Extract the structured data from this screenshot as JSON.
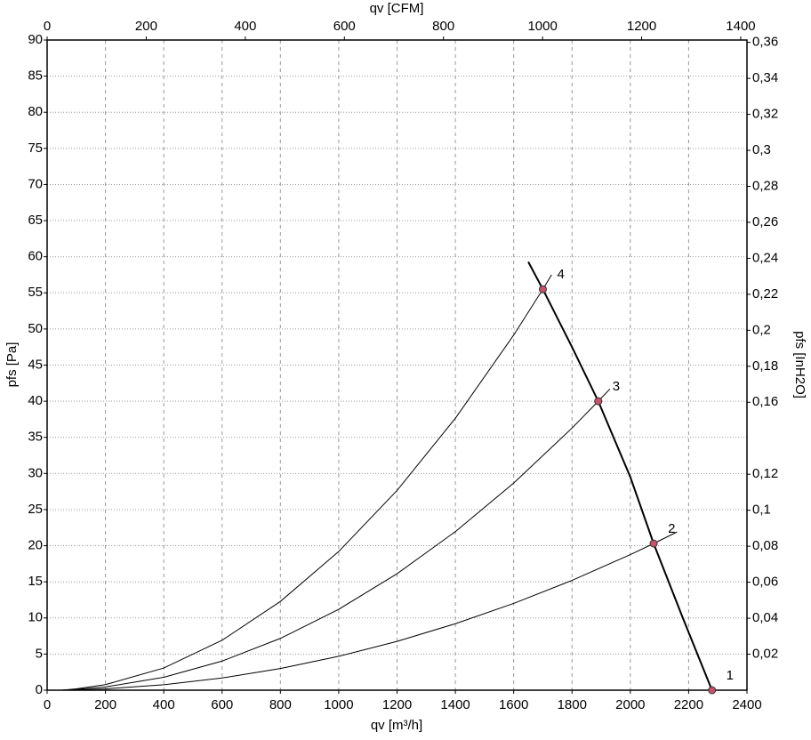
{
  "chart_data": {
    "type": "line",
    "x_label": "qv [m³/h]",
    "x2_label": "qv [CFM]",
    "y_label": "pfs [Pa]",
    "y2_label": "pfs [InH2O]",
    "xlim": [
      0,
      2400
    ],
    "xticks": [
      0,
      200,
      400,
      600,
      800,
      1000,
      1200,
      1400,
      1600,
      1800,
      2000,
      2200,
      2400
    ],
    "x2lim": [
      0,
      1412.6
    ],
    "x2ticks": [
      0,
      200,
      400,
      600,
      800,
      1000,
      1200,
      1400
    ],
    "ylim": [
      0,
      90
    ],
    "yticks": [
      0,
      5,
      10,
      15,
      20,
      25,
      30,
      35,
      40,
      45,
      50,
      55,
      60,
      65,
      70,
      75,
      80,
      85,
      90
    ],
    "y2lim": [
      0,
      0.3613
    ],
    "y2ticks": [
      {
        "value": 0.02,
        "label": "0,02"
      },
      {
        "value": 0.04,
        "label": "0,04"
      },
      {
        "value": 0.06,
        "label": "0,06"
      },
      {
        "value": 0.08,
        "label": "0,08"
      },
      {
        "value": 0.1,
        "label": "0,1"
      },
      {
        "value": 0.12,
        "label": "0,12"
      },
      {
        "value": 0.16,
        "label": "0,16"
      },
      {
        "value": 0.18,
        "label": "0,18"
      },
      {
        "value": 0.2,
        "label": "0,2"
      },
      {
        "value": 0.22,
        "label": "0,22"
      },
      {
        "value": 0.24,
        "label": "0,24"
      },
      {
        "value": 0.26,
        "label": "0,26"
      },
      {
        "value": 0.28,
        "label": "0,28"
      },
      {
        "value": 0.3,
        "label": "0,3"
      },
      {
        "value": 0.32,
        "label": "0,32"
      },
      {
        "value": 0.34,
        "label": "0,34"
      },
      {
        "value": 0.36,
        "label": "0,36"
      }
    ],
    "grid": true,
    "series": [
      {
        "color": "#000000",
        "width": 2,
        "x": [
          1650,
          1700,
          1800,
          1890,
          2000,
          2080,
          2180,
          2280
        ],
        "values": [
          59.3,
          55.5,
          47.5,
          40,
          29.5,
          20.3,
          10,
          0
        ]
      },
      {
        "color": "#000000",
        "width": 1,
        "x": [
          50,
          100,
          200,
          400,
          600,
          800,
          1000,
          1200,
          1400,
          1600,
          1700,
          1730
        ],
        "values": [
          0,
          0.19,
          0.77,
          3.07,
          6.91,
          12.29,
          19.2,
          27.65,
          37.64,
          49.16,
          55.5,
          57.5
        ]
      },
      {
        "color": "#000000",
        "width": 1,
        "x": [
          50,
          100,
          200,
          400,
          600,
          800,
          1000,
          1200,
          1400,
          1600,
          1800,
          1890,
          1930
        ],
        "values": [
          0,
          0.11,
          0.45,
          1.79,
          4.03,
          7.17,
          11.2,
          16.12,
          21.95,
          28.67,
          36.28,
          40,
          41.7
        ]
      },
      {
        "color": "#000000",
        "width": 1,
        "x": [
          50,
          100,
          200,
          400,
          600,
          800,
          1000,
          1200,
          1400,
          1600,
          1800,
          2000,
          2080,
          2160
        ],
        "values": [
          0,
          0.05,
          0.19,
          0.75,
          1.69,
          3.0,
          4.69,
          6.76,
          9.2,
          12.01,
          15.2,
          18.77,
          20.3,
          21.9
        ]
      }
    ],
    "points": {
      "color": "#c8506a",
      "labels": [
        "1",
        "2",
        "3",
        "4"
      ],
      "x": [
        2280,
        2080,
        1890,
        1700
      ],
      "values": [
        0,
        20.3,
        40,
        55.5
      ]
    }
  }
}
